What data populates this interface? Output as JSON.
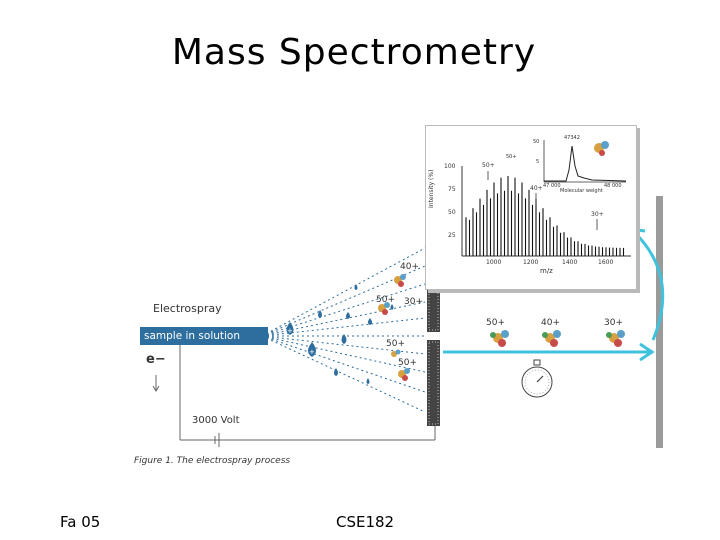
{
  "slide": {
    "title": "Mass Spectrometry",
    "footer_left": "Fa 05",
    "footer_center": "CSE182"
  },
  "figure": {
    "electrospray_label": "Electrospray",
    "sample_label": "sample in solution",
    "electron_label": "e−",
    "voltage_label": "3000 Volt",
    "caption": "Figure 1. The electrospray process",
    "spray_charges": [
      "40+",
      "50+",
      "30+",
      "50+",
      "50+"
    ],
    "flight_charges": [
      "50+",
      "40+",
      "30+"
    ],
    "colors": {
      "droplet": "#2d6e9e",
      "arrow": "#3fc3dc",
      "detector": "#9a9a9a"
    }
  },
  "inset": {
    "ylabel": "Intensity (%)",
    "xlabel": "m/z",
    "y_ticks": [
      "100",
      "75",
      "50",
      "25"
    ],
    "x_ticks": [
      "1000",
      "1200",
      "1400",
      "1600"
    ],
    "peak_labels": [
      "50+",
      "40+",
      "30+"
    ],
    "sub_plot": {
      "peak_label": "47342",
      "y_ticks": [
        "50",
        "5"
      ],
      "x_ticks": [
        "47 000",
        "48 000"
      ],
      "xlabel": "Molecular weight",
      "sub_peak_label": "50+"
    }
  }
}
